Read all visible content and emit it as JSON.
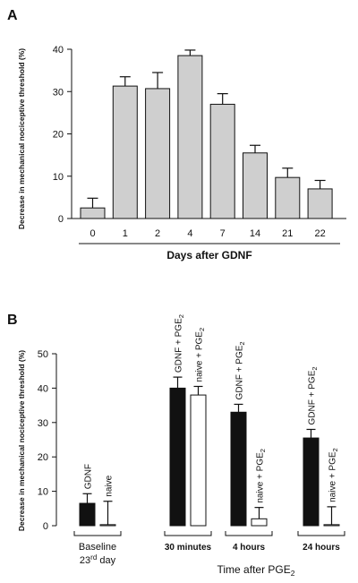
{
  "chart_data": [
    {
      "panel": "A",
      "type": "bar",
      "categories": [
        "0",
        "1",
        "2",
        "4",
        "7",
        "14",
        "21",
        "22"
      ],
      "values": [
        2.5,
        31.3,
        30.7,
        38.5,
        27.0,
        15.5,
        9.7,
        7.0
      ],
      "errors": [
        2.3,
        2.2,
        3.8,
        1.3,
        2.5,
        1.8,
        2.2,
        2.0
      ],
      "bar_color": "#cfcfcf",
      "xlabel": "Days after GDNF",
      "ylabel": "Decrease in mechanical nociceptive threshold (%)",
      "yticks": [
        0,
        10,
        20,
        30,
        40
      ],
      "ylim": [
        0,
        40
      ],
      "grid": false
    },
    {
      "panel": "B",
      "type": "bar",
      "groups": [
        {
          "label": "Baseline",
          "label2": "23rd day",
          "bars": [
            {
              "label": "GDNF",
              "value": 6.5,
              "error": 2.8,
              "fill": "#111111"
            },
            {
              "label": "naive",
              "value": 0.3,
              "error": 6.8,
              "fill": "#ffffff"
            }
          ]
        },
        {
          "label": "30 minutes",
          "bars": [
            {
              "label": "GDNF + PGE2",
              "value": 40.0,
              "error": 3.2,
              "fill": "#111111"
            },
            {
              "label": "naive + PGE2",
              "value": 38.0,
              "error": 2.5,
              "fill": "#ffffff"
            }
          ]
        },
        {
          "label": "4 hours",
          "bars": [
            {
              "label": "GDNF + PGE2",
              "value": 33.0,
              "error": 2.3,
              "fill": "#111111"
            },
            {
              "label": "naive + PGE2",
              "value": 2.0,
              "error": 3.3,
              "fill": "#ffffff"
            }
          ]
        },
        {
          "label": "24 hours",
          "bars": [
            {
              "label": "GDNF + PGE2",
              "value": 25.5,
              "error": 2.5,
              "fill": "#111111"
            },
            {
              "label": "naive + PGE2",
              "value": 0.3,
              "error": 5.2,
              "fill": "#ffffff"
            }
          ]
        }
      ],
      "xlabel": "Time after PGE2",
      "ylabel": "Decrease in mechanical nociceptive threshold (%)",
      "yticks": [
        0,
        10,
        20,
        30,
        40,
        50
      ],
      "ylim": [
        0,
        50
      ],
      "grid": false
    }
  ],
  "labels": {
    "panel_a": "A",
    "panel_b": "B",
    "superscript_rd": "rd",
    "subscript_2": "2"
  }
}
